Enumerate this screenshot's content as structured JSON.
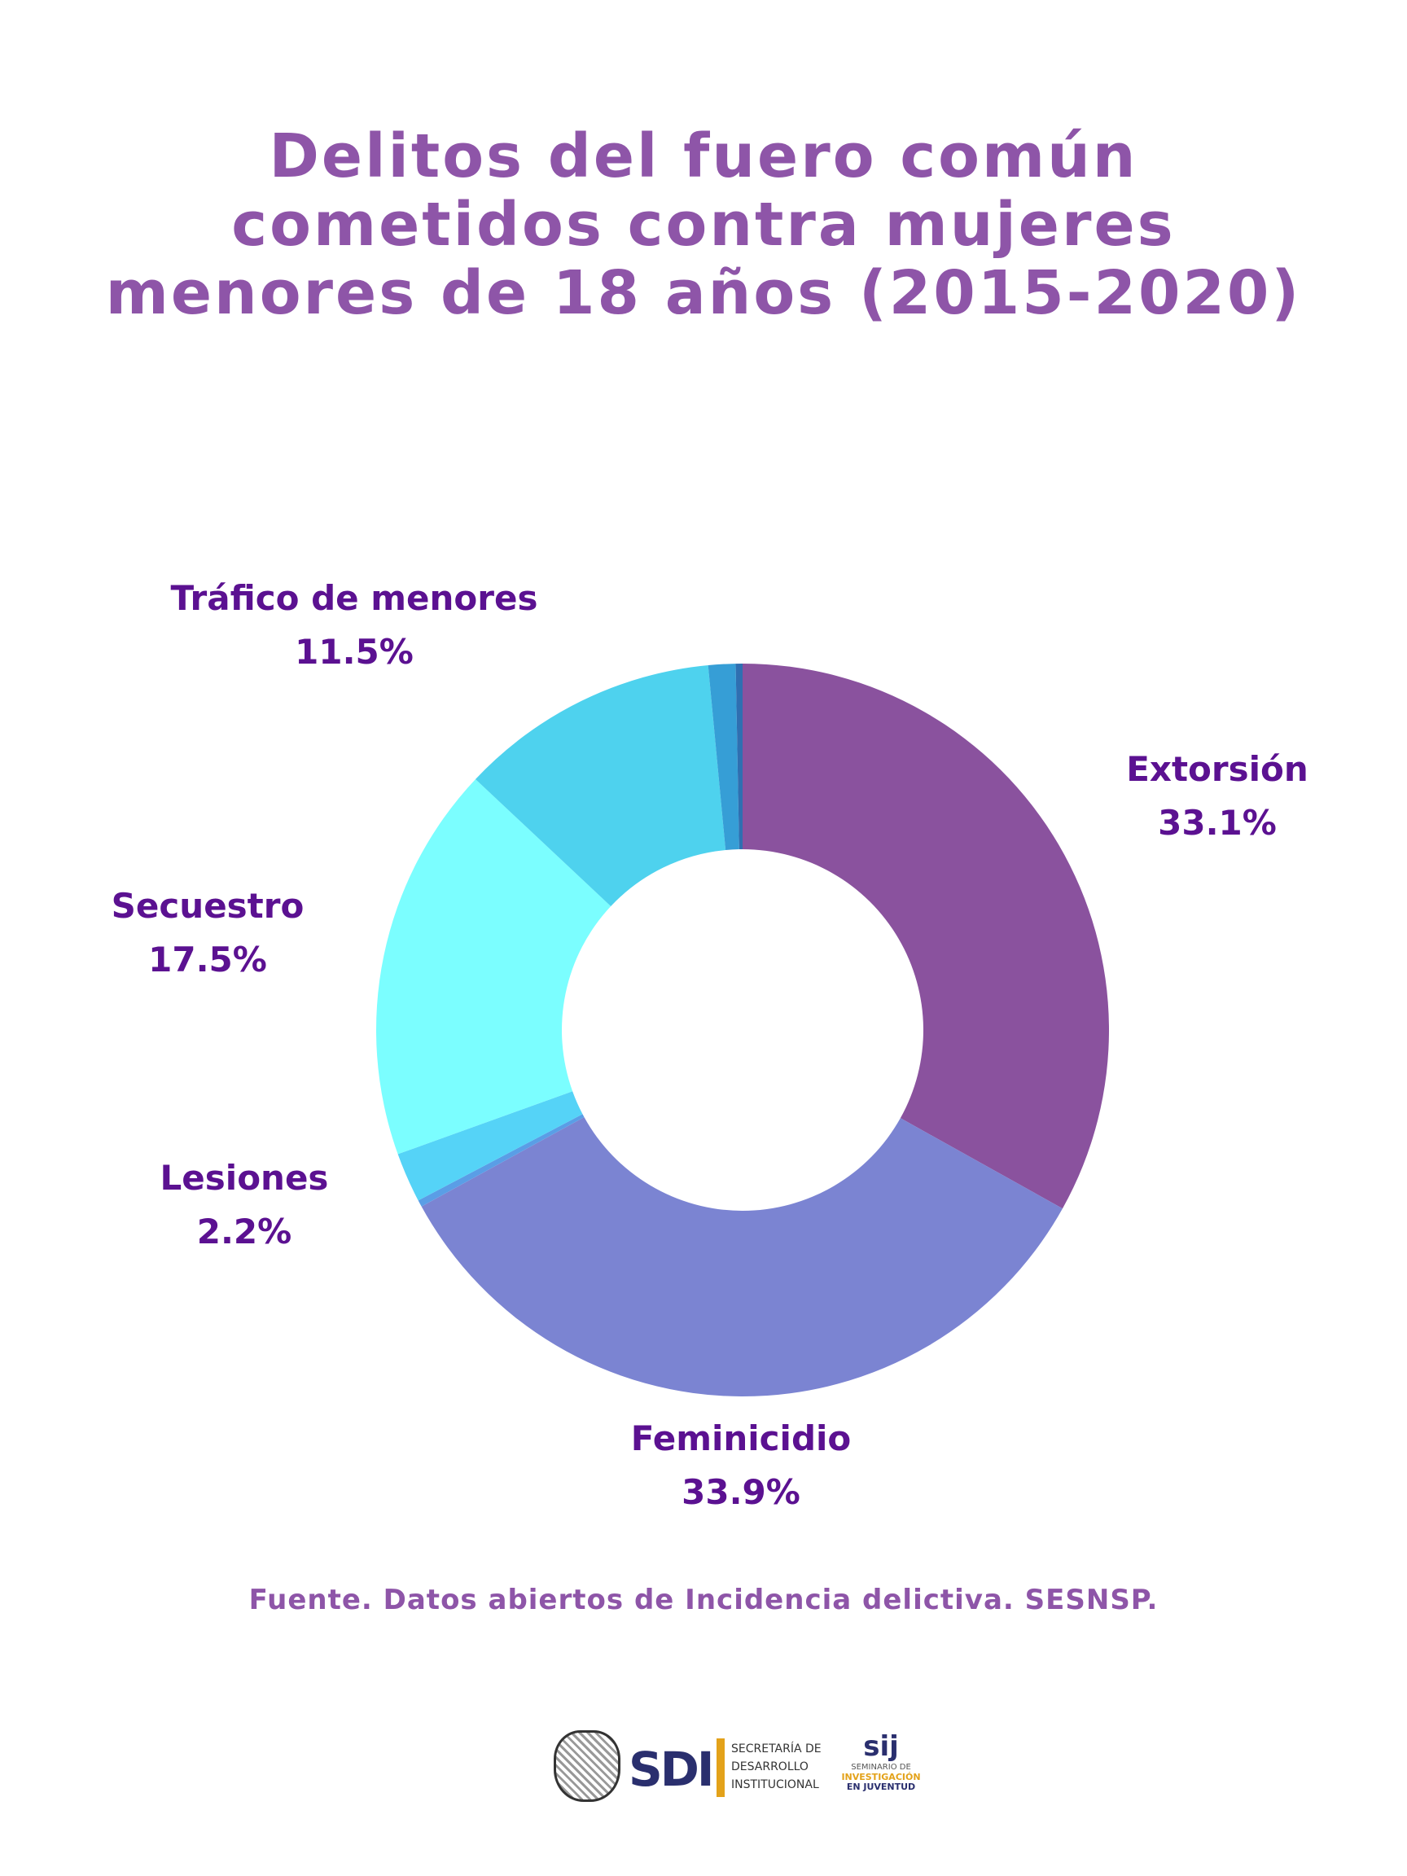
{
  "title_lines": [
    "Delitos del fuero común",
    "cometidos contra mujeres",
    "menores de 18 años (2015-2020)"
  ],
  "source": "Fuente. Datos abiertos de Incidencia delictiva. SESNSP.",
  "chart_data": {
    "type": "pie",
    "title": "Delitos del fuero común cometidos contra mujeres menores de 18 años (2015-2020)",
    "donut": true,
    "start_angle_deg": 0,
    "slices": [
      {
        "key": "extorsion",
        "value": 33.1,
        "color": "#8a529e",
        "label": "Extorsión",
        "value_label": "33.1%"
      },
      {
        "key": "feminicidio",
        "value": 33.9,
        "color": "#7b84d2",
        "label": "Feminicidio",
        "value_label": "33.9%"
      },
      {
        "key": "unlabeled_a",
        "value": 0.3,
        "color": "#5a9ee6"
      },
      {
        "key": "lesiones",
        "value": 2.2,
        "color": "#55d3f7",
        "label": "Lesiones",
        "value_label": "2.2%"
      },
      {
        "key": "secuestro",
        "value": 17.5,
        "color": "#7bfeff",
        "label": "Secuestro",
        "value_label": "17.5%"
      },
      {
        "key": "trafico",
        "value": 11.5,
        "color": "#4ed2ee",
        "label": "Tráfico de menores",
        "value_label": "11.5%"
      },
      {
        "key": "unlabeled_b",
        "value": 1.2,
        "color": "#369ed6"
      },
      {
        "key": "unlabeled_c",
        "value": 0.3,
        "color": "#2f6fb1"
      }
    ]
  },
  "logos": {
    "sdi_mark": "SDI",
    "sdi_text": [
      "Secretaría de",
      "Desarrollo",
      "Institucional"
    ],
    "sij_mark": "sij",
    "sij_lines": [
      "Seminario de",
      "Investigación",
      "en Juventud"
    ]
  }
}
